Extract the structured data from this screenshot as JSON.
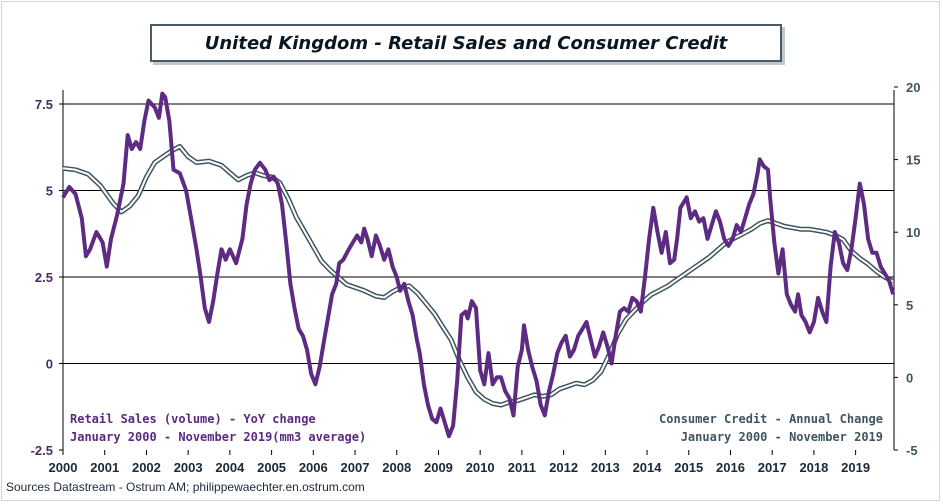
{
  "title": "United Kingdom - Retail Sales and Consumer Credit",
  "source": "Sources Datastream - Ostrum AM; philippewaechter.en.ostrum.com",
  "legend": {
    "retail_line1": "Retail Sales (volume) - YoY change",
    "retail_line2": "January 2000 - November 2019(mm3 average)",
    "credit_line1": "Consumer Credit - Annual Change",
    "credit_line2": "January 2000 - November 2019"
  },
  "colors": {
    "retail": "#5e2b82",
    "credit": "#3f5560",
    "axis_left": "#4a2a63",
    "axis_right": "#3f5560"
  },
  "chart_data": {
    "type": "line",
    "x_ticks": [
      "2000",
      "2001",
      "2002",
      "2003",
      "2004",
      "2005",
      "2006",
      "2007",
      "2008",
      "2009",
      "2010",
      "2011",
      "2012",
      "2013",
      "2014",
      "2015",
      "2016",
      "2017",
      "2018",
      "2019"
    ],
    "y_left": {
      "ticks": [
        "7.5",
        "5",
        "2.5",
        "0",
        "-2.5"
      ],
      "range": [
        -2.5,
        7.5
      ],
      "gridlines": [
        7.5,
        5,
        2.5
      ]
    },
    "y_right": {
      "ticks": [
        "20",
        "15",
        "10",
        "5",
        "0",
        "-5"
      ],
      "range": [
        -5,
        20
      ]
    },
    "x_range": [
      2000.0,
      2019.92
    ],
    "series": [
      {
        "name": "Retail Sales (volume) - YoY change",
        "axis": "left",
        "points": [
          [
            2000.0,
            4.8
          ],
          [
            2000.15,
            5.1
          ],
          [
            2000.3,
            4.9
          ],
          [
            2000.45,
            4.2
          ],
          [
            2000.55,
            3.1
          ],
          [
            2000.65,
            3.3
          ],
          [
            2000.8,
            3.8
          ],
          [
            2000.95,
            3.5
          ],
          [
            2001.05,
            2.8
          ],
          [
            2001.15,
            3.6
          ],
          [
            2001.3,
            4.3
          ],
          [
            2001.45,
            5.2
          ],
          [
            2001.55,
            6.6
          ],
          [
            2001.65,
            6.2
          ],
          [
            2001.75,
            6.4
          ],
          [
            2001.85,
            6.2
          ],
          [
            2001.95,
            7.0
          ],
          [
            2002.05,
            7.6
          ],
          [
            2002.2,
            7.4
          ],
          [
            2002.3,
            7.1
          ],
          [
            2002.38,
            7.8
          ],
          [
            2002.45,
            7.7
          ],
          [
            2002.55,
            7.0
          ],
          [
            2002.65,
            5.6
          ],
          [
            2002.8,
            5.5
          ],
          [
            2002.95,
            5.0
          ],
          [
            2003.1,
            4.0
          ],
          [
            2003.2,
            3.3
          ],
          [
            2003.3,
            2.5
          ],
          [
            2003.4,
            1.6
          ],
          [
            2003.5,
            1.2
          ],
          [
            2003.6,
            1.8
          ],
          [
            2003.7,
            2.6
          ],
          [
            2003.8,
            3.3
          ],
          [
            2003.9,
            3.0
          ],
          [
            2004.0,
            3.3
          ],
          [
            2004.15,
            2.9
          ],
          [
            2004.3,
            3.6
          ],
          [
            2004.4,
            4.6
          ],
          [
            2004.5,
            5.2
          ],
          [
            2004.6,
            5.6
          ],
          [
            2004.72,
            5.8
          ],
          [
            2004.85,
            5.6
          ],
          [
            2004.95,
            5.3
          ],
          [
            2005.05,
            5.4
          ],
          [
            2005.15,
            5.2
          ],
          [
            2005.25,
            4.6
          ],
          [
            2005.35,
            3.5
          ],
          [
            2005.45,
            2.3
          ],
          [
            2005.55,
            1.6
          ],
          [
            2005.65,
            1.0
          ],
          [
            2005.75,
            0.8
          ],
          [
            2005.85,
            0.4
          ],
          [
            2005.95,
            -0.3
          ],
          [
            2006.05,
            -0.6
          ],
          [
            2006.15,
            -0.1
          ],
          [
            2006.25,
            0.6
          ],
          [
            2006.35,
            1.3
          ],
          [
            2006.45,
            2.0
          ],
          [
            2006.55,
            2.3
          ],
          [
            2006.62,
            2.9
          ],
          [
            2006.72,
            3.0
          ],
          [
            2006.85,
            3.3
          ],
          [
            2006.95,
            3.5
          ],
          [
            2007.05,
            3.7
          ],
          [
            2007.15,
            3.5
          ],
          [
            2007.22,
            3.9
          ],
          [
            2007.3,
            3.6
          ],
          [
            2007.4,
            3.1
          ],
          [
            2007.5,
            3.7
          ],
          [
            2007.6,
            3.4
          ],
          [
            2007.7,
            3.0
          ],
          [
            2007.8,
            3.3
          ],
          [
            2007.9,
            2.8
          ],
          [
            2008.0,
            2.5
          ],
          [
            2008.08,
            2.1
          ],
          [
            2008.18,
            2.3
          ],
          [
            2008.28,
            1.8
          ],
          [
            2008.38,
            1.4
          ],
          [
            2008.48,
            0.7
          ],
          [
            2008.55,
            0.3
          ],
          [
            2008.65,
            -0.6
          ],
          [
            2008.75,
            -1.2
          ],
          [
            2008.85,
            -1.6
          ],
          [
            2008.95,
            -1.7
          ],
          [
            2009.05,
            -1.3
          ],
          [
            2009.15,
            -1.7
          ],
          [
            2009.25,
            -2.1
          ],
          [
            2009.35,
            -1.8
          ],
          [
            2009.45,
            -0.5
          ],
          [
            2009.55,
            1.4
          ],
          [
            2009.65,
            1.5
          ],
          [
            2009.7,
            1.3
          ],
          [
            2009.8,
            1.8
          ],
          [
            2009.9,
            1.6
          ],
          [
            2010.0,
            -0.2
          ],
          [
            2010.1,
            -0.6
          ],
          [
            2010.2,
            0.3
          ],
          [
            2010.3,
            -0.6
          ],
          [
            2010.4,
            -0.4
          ],
          [
            2010.5,
            -0.4
          ],
          [
            2010.6,
            -0.8
          ],
          [
            2010.7,
            -1.0
          ],
          [
            2010.8,
            -1.5
          ],
          [
            2010.9,
            -0.1
          ],
          [
            2011.0,
            0.4
          ],
          [
            2011.05,
            1.1
          ],
          [
            2011.15,
            0.4
          ],
          [
            2011.25,
            -0.1
          ],
          [
            2011.35,
            -0.5
          ],
          [
            2011.45,
            -1.2
          ],
          [
            2011.55,
            -1.5
          ],
          [
            2011.65,
            -0.8
          ],
          [
            2011.75,
            -0.3
          ],
          [
            2011.85,
            0.3
          ],
          [
            2011.95,
            0.6
          ],
          [
            2012.05,
            0.8
          ],
          [
            2012.15,
            0.2
          ],
          [
            2012.25,
            0.4
          ],
          [
            2012.35,
            0.8
          ],
          [
            2012.45,
            1.0
          ],
          [
            2012.55,
            1.2
          ],
          [
            2012.65,
            0.7
          ],
          [
            2012.75,
            0.2
          ],
          [
            2012.85,
            0.5
          ],
          [
            2012.95,
            0.9
          ],
          [
            2013.05,
            0.5
          ],
          [
            2013.15,
            0.0
          ],
          [
            2013.25,
            0.8
          ],
          [
            2013.35,
            1.5
          ],
          [
            2013.45,
            1.6
          ],
          [
            2013.55,
            1.5
          ],
          [
            2013.65,
            1.9
          ],
          [
            2013.75,
            1.8
          ],
          [
            2013.85,
            1.5
          ],
          [
            2013.95,
            2.5
          ],
          [
            2014.05,
            3.6
          ],
          [
            2014.15,
            4.5
          ],
          [
            2014.25,
            3.8
          ],
          [
            2014.35,
            3.2
          ],
          [
            2014.45,
            3.8
          ],
          [
            2014.55,
            2.9
          ],
          [
            2014.65,
            3.0
          ],
          [
            2014.72,
            3.6
          ],
          [
            2014.8,
            4.5
          ],
          [
            2014.95,
            4.8
          ],
          [
            2015.05,
            4.2
          ],
          [
            2015.15,
            4.4
          ],
          [
            2015.25,
            4.1
          ],
          [
            2015.35,
            4.2
          ],
          [
            2015.45,
            3.6
          ],
          [
            2015.55,
            4.0
          ],
          [
            2015.65,
            4.4
          ],
          [
            2015.75,
            4.1
          ],
          [
            2015.85,
            3.6
          ],
          [
            2015.95,
            3.4
          ],
          [
            2016.05,
            3.6
          ],
          [
            2016.15,
            4.0
          ],
          [
            2016.25,
            3.8
          ],
          [
            2016.35,
            4.2
          ],
          [
            2016.45,
            4.6
          ],
          [
            2016.55,
            4.9
          ],
          [
            2016.65,
            5.5
          ],
          [
            2016.7,
            5.9
          ],
          [
            2016.8,
            5.7
          ],
          [
            2016.9,
            5.6
          ],
          [
            2016.95,
            4.8
          ],
          [
            2017.05,
            3.5
          ],
          [
            2017.15,
            2.6
          ],
          [
            2017.25,
            3.3
          ],
          [
            2017.35,
            2.0
          ],
          [
            2017.45,
            1.7
          ],
          [
            2017.55,
            1.5
          ],
          [
            2017.62,
            2.0
          ],
          [
            2017.7,
            1.4
          ],
          [
            2017.8,
            1.2
          ],
          [
            2017.9,
            0.9
          ],
          [
            2018.0,
            1.2
          ],
          [
            2018.1,
            1.9
          ],
          [
            2018.2,
            1.5
          ],
          [
            2018.3,
            1.2
          ],
          [
            2018.4,
            2.8
          ],
          [
            2018.5,
            3.8
          ],
          [
            2018.6,
            3.5
          ],
          [
            2018.7,
            2.9
          ],
          [
            2018.8,
            2.7
          ],
          [
            2018.9,
            3.3
          ],
          [
            2019.0,
            4.2
          ],
          [
            2019.1,
            5.2
          ],
          [
            2019.2,
            4.6
          ],
          [
            2019.3,
            3.6
          ],
          [
            2019.4,
            3.2
          ],
          [
            2019.5,
            3.2
          ],
          [
            2019.6,
            2.8
          ],
          [
            2019.7,
            2.6
          ],
          [
            2019.8,
            2.4
          ],
          [
            2019.9,
            2.0
          ]
        ]
      },
      {
        "name": "Consumer Credit - Annual Change",
        "axis": "right",
        "points": [
          [
            2000.0,
            14.4
          ],
          [
            2000.3,
            14.3
          ],
          [
            2000.6,
            14.0
          ],
          [
            2000.9,
            13.2
          ],
          [
            2001.2,
            12.0
          ],
          [
            2001.4,
            11.4
          ],
          [
            2001.6,
            11.8
          ],
          [
            2001.8,
            12.5
          ],
          [
            2002.0,
            13.8
          ],
          [
            2002.2,
            14.8
          ],
          [
            2002.4,
            15.2
          ],
          [
            2002.6,
            15.6
          ],
          [
            2002.8,
            15.9
          ],
          [
            2003.0,
            15.2
          ],
          [
            2003.2,
            14.8
          ],
          [
            2003.5,
            14.9
          ],
          [
            2003.8,
            14.6
          ],
          [
            2004.0,
            14.1
          ],
          [
            2004.2,
            13.6
          ],
          [
            2004.4,
            13.9
          ],
          [
            2004.6,
            14.1
          ],
          [
            2004.8,
            13.9
          ],
          [
            2005.0,
            13.8
          ],
          [
            2005.2,
            13.4
          ],
          [
            2005.4,
            12.3
          ],
          [
            2005.6,
            11.0
          ],
          [
            2005.8,
            10.0
          ],
          [
            2006.0,
            9.0
          ],
          [
            2006.2,
            8.0
          ],
          [
            2006.4,
            7.4
          ],
          [
            2006.6,
            6.9
          ],
          [
            2006.8,
            6.4
          ],
          [
            2007.0,
            6.2
          ],
          [
            2007.2,
            6.0
          ],
          [
            2007.5,
            5.6
          ],
          [
            2007.7,
            5.5
          ],
          [
            2007.9,
            5.9
          ],
          [
            2008.1,
            6.2
          ],
          [
            2008.3,
            6.3
          ],
          [
            2008.5,
            5.8
          ],
          [
            2008.7,
            5.1
          ],
          [
            2008.9,
            4.4
          ],
          [
            2009.1,
            3.5
          ],
          [
            2009.3,
            2.6
          ],
          [
            2009.5,
            1.2
          ],
          [
            2009.7,
            0.0
          ],
          [
            2009.9,
            -1.0
          ],
          [
            2010.1,
            -1.5
          ],
          [
            2010.3,
            -1.8
          ],
          [
            2010.5,
            -1.9
          ],
          [
            2010.7,
            -1.7
          ],
          [
            2010.9,
            -1.6
          ],
          [
            2011.1,
            -1.4
          ],
          [
            2011.3,
            -1.2
          ],
          [
            2011.5,
            -1.3
          ],
          [
            2011.7,
            -1.2
          ],
          [
            2011.9,
            -0.8
          ],
          [
            2012.1,
            -0.6
          ],
          [
            2012.3,
            -0.4
          ],
          [
            2012.5,
            -0.5
          ],
          [
            2012.7,
            -0.2
          ],
          [
            2012.9,
            0.4
          ],
          [
            2013.1,
            1.6
          ],
          [
            2013.3,
            3.0
          ],
          [
            2013.5,
            4.0
          ],
          [
            2013.7,
            4.6
          ],
          [
            2013.9,
            5.2
          ],
          [
            2014.1,
            5.7
          ],
          [
            2014.3,
            6.0
          ],
          [
            2014.5,
            6.3
          ],
          [
            2014.7,
            6.7
          ],
          [
            2014.9,
            7.1
          ],
          [
            2015.1,
            7.5
          ],
          [
            2015.3,
            7.9
          ],
          [
            2015.5,
            8.3
          ],
          [
            2015.7,
            8.8
          ],
          [
            2015.9,
            9.3
          ],
          [
            2016.1,
            9.6
          ],
          [
            2016.3,
            9.9
          ],
          [
            2016.5,
            10.2
          ],
          [
            2016.7,
            10.6
          ],
          [
            2016.9,
            10.8
          ],
          [
            2017.1,
            10.6
          ],
          [
            2017.3,
            10.4
          ],
          [
            2017.5,
            10.3
          ],
          [
            2017.7,
            10.2
          ],
          [
            2017.9,
            10.2
          ],
          [
            2018.1,
            10.1
          ],
          [
            2018.3,
            10.0
          ],
          [
            2018.5,
            9.8
          ],
          [
            2018.7,
            9.5
          ],
          [
            2018.9,
            8.7
          ],
          [
            2019.1,
            8.2
          ],
          [
            2019.3,
            7.8
          ],
          [
            2019.5,
            7.3
          ],
          [
            2019.7,
            6.9
          ],
          [
            2019.9,
            6.6
          ]
        ]
      }
    ]
  }
}
